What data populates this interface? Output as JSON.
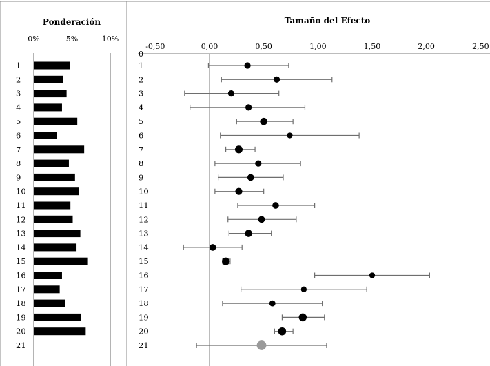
{
  "chart_data": [
    {
      "type": "bar",
      "orientation": "horizontal",
      "title": "Ponderación",
      "xlim": [
        0,
        12
      ],
      "x_ticks": [
        "0%",
        "5%",
        "10%"
      ],
      "x_tick_values": [
        0,
        5,
        10
      ],
      "categories": [
        "1",
        "2",
        "3",
        "4",
        "5",
        "6",
        "7",
        "8",
        "9",
        "10",
        "11",
        "12",
        "13",
        "14",
        "15",
        "16",
        "17",
        "18",
        "19",
        "20",
        "21"
      ],
      "values": [
        4.6,
        3.7,
        4.2,
        3.6,
        5.6,
        2.9,
        6.5,
        4.5,
        5.3,
        5.8,
        4.7,
        5.0,
        6.0,
        5.5,
        6.9,
        3.6,
        3.3,
        4.0,
        6.1,
        6.7,
        null
      ]
    },
    {
      "type": "scatter",
      "subtype": "forest-plot",
      "title": "Tamaño del Efecto",
      "xlim": [
        -0.5,
        2.5
      ],
      "x_ticks": [
        "-0,50",
        "0,00",
        "0,50",
        "1,00",
        "1,50",
        "2,00",
        "2,50"
      ],
      "x_tick_values": [
        -0.5,
        0,
        0.5,
        1.0,
        1.5,
        2.0,
        2.5
      ],
      "top_marker": "0",
      "reference_line": 0,
      "categories": [
        "1",
        "2",
        "3",
        "4",
        "5",
        "6",
        "7",
        "8",
        "9",
        "10",
        "11",
        "12",
        "13",
        "14",
        "15",
        "16",
        "17",
        "18",
        "19",
        "20",
        "21"
      ],
      "effect": [
        0.35,
        0.62,
        0.2,
        0.36,
        0.5,
        0.74,
        0.27,
        0.45,
        0.38,
        0.27,
        0.61,
        0.48,
        0.36,
        0.03,
        0.15,
        1.5,
        0.87,
        0.58,
        0.86,
        0.67,
        0.48
      ],
      "ci_lower": [
        -0.01,
        0.11,
        -0.23,
        -0.18,
        0.25,
        0.1,
        0.15,
        0.05,
        0.08,
        0.05,
        0.26,
        0.17,
        0.18,
        -0.24,
        0.12,
        0.97,
        0.29,
        0.12,
        0.67,
        0.6,
        -0.12
      ],
      "ci_upper": [
        0.73,
        1.13,
        0.64,
        0.88,
        0.77,
        1.38,
        0.42,
        0.84,
        0.68,
        0.5,
        0.97,
        0.8,
        0.57,
        0.3,
        0.19,
        2.03,
        1.45,
        1.04,
        1.06,
        0.77,
        1.08
      ],
      "marker_size": [
        1,
        1,
        1,
        1,
        1.15,
        0.9,
        1.2,
        1,
        1.05,
        1.1,
        1.05,
        1.05,
        1.15,
        1.05,
        1.2,
        0.9,
        0.9,
        0.95,
        1.25,
        1.25,
        1.5
      ],
      "summary_index": 20,
      "colors": {
        "study_marker": "#000000",
        "summary_marker": "#9a9a9a",
        "ci_line": "#6e6e6e",
        "axis": "#7a7a7a"
      }
    }
  ]
}
